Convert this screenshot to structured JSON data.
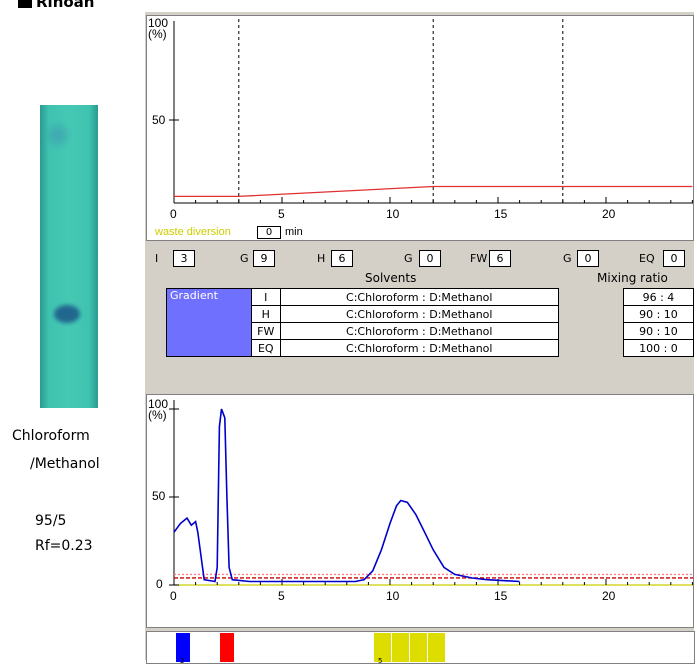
{
  "heading": "Rinoan",
  "side_text": {
    "solvent_line1": "Chloroform",
    "solvent_line2": "/Methanol",
    "ratio": "95/5",
    "rf": "Rf=0.23"
  },
  "top_graph": {
    "y_max_label": "100",
    "y_unit_label": "(%)",
    "y_mid_label": "50",
    "x_ticks": [
      "0",
      "5",
      "10",
      "15",
      "20"
    ],
    "waste_diversion_label": "waste diversion",
    "waste_diversion_value": "0",
    "waste_diversion_unit": "min",
    "gradient_points": [
      [
        0,
        4
      ],
      [
        3,
        4
      ],
      [
        12,
        10
      ],
      [
        18,
        10
      ],
      [
        24,
        10
      ]
    ],
    "step_lines_min": [
      3,
      12,
      18
    ]
  },
  "fields": [
    {
      "label": "I",
      "value": "3"
    },
    {
      "label": "G",
      "value": "9"
    },
    {
      "label": "H",
      "value": "6"
    },
    {
      "label": "G",
      "value": "0"
    },
    {
      "label": "FW",
      "value": "6"
    },
    {
      "label": "G",
      "value": "0"
    },
    {
      "label": "EQ",
      "value": "0"
    }
  ],
  "table": {
    "solvents_header": "Solvents",
    "mixing_header": "Mixing ratio",
    "gradient_label": "Gradient",
    "rows": [
      {
        "step": "I",
        "solvents": "C:Chloroform : D:Methanol",
        "ratio": "96 : 4"
      },
      {
        "step": "H",
        "solvents": "C:Chloroform : D:Methanol",
        "ratio": "90 : 10"
      },
      {
        "step": "FW",
        "solvents": "C:Chloroform : D:Methanol",
        "ratio": "90 : 10"
      },
      {
        "step": "EQ",
        "solvents": "C:Chloroform : D:Methanol",
        "ratio": "100 : 0"
      }
    ]
  },
  "chart_data": {
    "type": "line",
    "title": "",
    "xlabel": "",
    "ylabel": "(%)",
    "xlim": [
      0,
      24
    ],
    "ylim": [
      0,
      100
    ],
    "y_tick_labels": [
      "0",
      "50",
      "100"
    ],
    "x_tick_labels": [
      "0",
      "5",
      "10",
      "15",
      "20"
    ],
    "series": [
      {
        "values": [
          [
            0,
            30
          ],
          [
            0.3,
            35
          ],
          [
            0.6,
            38
          ],
          [
            0.8,
            34
          ],
          [
            1.0,
            36
          ],
          [
            1.1,
            30
          ],
          [
            1.4,
            3
          ],
          [
            1.9,
            2
          ],
          [
            2.0,
            10
          ],
          [
            2.1,
            90
          ],
          [
            2.2,
            100
          ],
          [
            2.35,
            95
          ],
          [
            2.45,
            50
          ],
          [
            2.55,
            10
          ],
          [
            2.7,
            3
          ],
          [
            3.5,
            2
          ],
          [
            5,
            2
          ],
          [
            8.4,
            2
          ],
          [
            8.8,
            3
          ],
          [
            9.2,
            8
          ],
          [
            9.6,
            20
          ],
          [
            10.0,
            35
          ],
          [
            10.3,
            45
          ],
          [
            10.5,
            48
          ],
          [
            10.8,
            47
          ],
          [
            11.2,
            40
          ],
          [
            11.6,
            30
          ],
          [
            12.0,
            20
          ],
          [
            12.5,
            10
          ],
          [
            13.0,
            6
          ],
          [
            13.8,
            4
          ],
          [
            14.5,
            3
          ],
          [
            16.0,
            2
          ]
        ],
        "color": "#0000cc"
      }
    ],
    "threshold_lines": [
      {
        "value": 6,
        "color": "#ff8080",
        "style": "dotted"
      },
      {
        "value": 4,
        "color": "#cc0000",
        "style": "dashed"
      },
      {
        "value": 0,
        "color": "#cccc00",
        "style": "solid"
      }
    ]
  },
  "fractions": [
    {
      "color": "#0000ff",
      "label": "2"
    },
    {
      "color": "#ff0000",
      "label": ""
    },
    {
      "color": "#dddd00",
      "label": "5"
    },
    {
      "color": "#dddd00",
      "label": ""
    },
    {
      "color": "#dddd00",
      "label": ""
    },
    {
      "color": "#dddd00",
      "label": ""
    }
  ]
}
